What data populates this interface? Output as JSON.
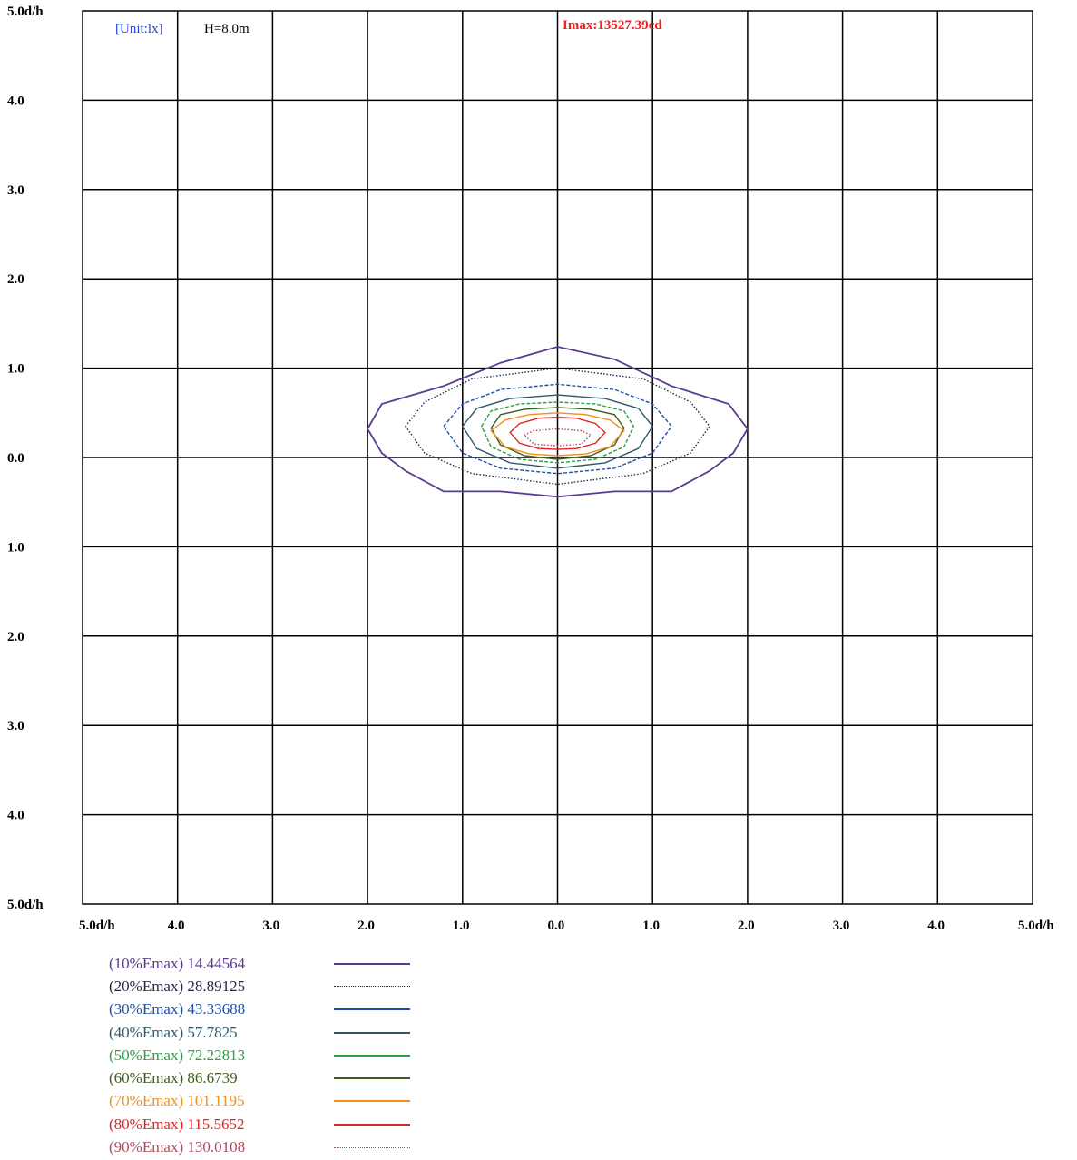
{
  "chart_data": {
    "type": "contour",
    "unit_label": "[Unit:lx]",
    "height_label": "H=8.0m",
    "imax_label": "Imax:13527.39cd",
    "x_ticks": [
      "5.0d/h",
      "4.0",
      "3.0",
      "2.0",
      "1.0",
      "0.0",
      "1.0",
      "2.0",
      "3.0",
      "4.0",
      "5.0d/h"
    ],
    "y_ticks": [
      "5.0d/h",
      "4.0",
      "3.0",
      "2.0",
      "1.0",
      "0.0",
      "1.0",
      "2.0",
      "3.0",
      "4.0",
      "5.0d/h"
    ],
    "xlim": [
      -5,
      5
    ],
    "ylim": [
      -5,
      5
    ],
    "grid": true,
    "legend_position": "bottom-left",
    "series": [
      {
        "label": "(10%Emax) 14.44564",
        "color": "#5b3a91",
        "dash": "solid",
        "points": [
          [
            -2.0,
            0.32
          ],
          [
            -1.85,
            0.6
          ],
          [
            -1.2,
            0.8
          ],
          [
            -0.6,
            1.06
          ],
          [
            0,
            1.24
          ],
          [
            0.6,
            1.1
          ],
          [
            1.2,
            0.8
          ],
          [
            1.8,
            0.6
          ],
          [
            2.0,
            0.32
          ],
          [
            1.85,
            0.05
          ],
          [
            1.6,
            -0.15
          ],
          [
            1.2,
            -0.38
          ],
          [
            0.6,
            -0.38
          ],
          [
            0,
            -0.44
          ],
          [
            -0.6,
            -0.38
          ],
          [
            -1.2,
            -0.38
          ],
          [
            -1.6,
            -0.15
          ],
          [
            -1.85,
            0.05
          ]
        ]
      },
      {
        "label": "(20%Emax) 28.89125",
        "color": "#1e2a4a",
        "dash": "dotted",
        "points": [
          [
            -1.6,
            0.35
          ],
          [
            -1.4,
            0.62
          ],
          [
            -0.9,
            0.88
          ],
          [
            0,
            1.0
          ],
          [
            0.9,
            0.88
          ],
          [
            1.4,
            0.62
          ],
          [
            1.6,
            0.35
          ],
          [
            1.4,
            0.05
          ],
          [
            0.9,
            -0.18
          ],
          [
            0,
            -0.3
          ],
          [
            -0.9,
            -0.18
          ],
          [
            -1.4,
            0.05
          ]
        ]
      },
      {
        "label": "(30%Emax) 43.33688",
        "color": "#1e4fa8",
        "dash": "dashed",
        "points": [
          [
            -1.2,
            0.35
          ],
          [
            -1.0,
            0.6
          ],
          [
            -0.6,
            0.76
          ],
          [
            0,
            0.82
          ],
          [
            0.6,
            0.76
          ],
          [
            1.0,
            0.6
          ],
          [
            1.2,
            0.35
          ],
          [
            1.0,
            0.05
          ],
          [
            0.6,
            -0.12
          ],
          [
            0,
            -0.18
          ],
          [
            -0.6,
            -0.12
          ],
          [
            -1.0,
            0.05
          ]
        ]
      },
      {
        "label": "(40%Emax) 57.7825",
        "color": "#2e5a6e",
        "dash": "solid",
        "points": [
          [
            -1.0,
            0.35
          ],
          [
            -0.85,
            0.55
          ],
          [
            -0.5,
            0.66
          ],
          [
            0,
            0.7
          ],
          [
            0.5,
            0.66
          ],
          [
            0.85,
            0.55
          ],
          [
            1.0,
            0.35
          ],
          [
            0.85,
            0.1
          ],
          [
            0.5,
            -0.06
          ],
          [
            0,
            -0.12
          ],
          [
            -0.5,
            -0.06
          ],
          [
            -0.85,
            0.1
          ]
        ]
      },
      {
        "label": "(50%Emax) 72.22813",
        "color": "#2c9e44",
        "dash": "dashed",
        "points": [
          [
            -0.8,
            0.35
          ],
          [
            -0.7,
            0.52
          ],
          [
            -0.4,
            0.6
          ],
          [
            0,
            0.62
          ],
          [
            0.4,
            0.6
          ],
          [
            0.7,
            0.52
          ],
          [
            0.8,
            0.35
          ],
          [
            0.7,
            0.12
          ],
          [
            0.4,
            -0.02
          ],
          [
            0,
            -0.06
          ],
          [
            -0.4,
            -0.02
          ],
          [
            -0.7,
            0.12
          ]
        ]
      },
      {
        "label": "(60%Emax) 86.6739",
        "color": "#3d5e1e",
        "dash": "solid",
        "points": [
          [
            -0.7,
            0.33
          ],
          [
            -0.6,
            0.48
          ],
          [
            -0.35,
            0.54
          ],
          [
            0,
            0.56
          ],
          [
            0.35,
            0.54
          ],
          [
            0.6,
            0.48
          ],
          [
            0.7,
            0.33
          ],
          [
            0.6,
            0.14
          ],
          [
            0.35,
            0.02
          ],
          [
            0,
            -0.02
          ],
          [
            -0.35,
            0.02
          ],
          [
            -0.6,
            0.14
          ]
        ]
      },
      {
        "label": "(70%Emax) 101.1195",
        "color": "#f0901e",
        "dash": "solid",
        "points": [
          [
            -0.7,
            0.3
          ],
          [
            -0.55,
            0.42
          ],
          [
            -0.3,
            0.48
          ],
          [
            0,
            0.5
          ],
          [
            0.3,
            0.48
          ],
          [
            0.55,
            0.42
          ],
          [
            0.7,
            0.3
          ],
          [
            0.55,
            0.12
          ],
          [
            0.3,
            0.04
          ],
          [
            0,
            0.02
          ],
          [
            -0.3,
            0.04
          ],
          [
            -0.55,
            0.12
          ]
        ]
      },
      {
        "label": "(80%Emax) 115.5652",
        "color": "#e02424",
        "dash": "solid",
        "points": [
          [
            -0.5,
            0.28
          ],
          [
            -0.4,
            0.38
          ],
          [
            -0.2,
            0.44
          ],
          [
            0,
            0.45
          ],
          [
            0.2,
            0.44
          ],
          [
            0.4,
            0.38
          ],
          [
            0.5,
            0.28
          ],
          [
            0.4,
            0.16
          ],
          [
            0.2,
            0.1
          ],
          [
            0,
            0.09
          ],
          [
            -0.2,
            0.1
          ],
          [
            -0.4,
            0.16
          ]
        ]
      },
      {
        "label": "(90%Emax) 130.0108",
        "color": "#b04a5a",
        "dash": "dotted",
        "points": [
          [
            -0.35,
            0.25
          ],
          [
            -0.25,
            0.3
          ],
          [
            0,
            0.32
          ],
          [
            0.25,
            0.3
          ],
          [
            0.35,
            0.25
          ],
          [
            0.25,
            0.15
          ],
          [
            0,
            0.13
          ],
          [
            -0.25,
            0.15
          ]
        ]
      }
    ]
  }
}
